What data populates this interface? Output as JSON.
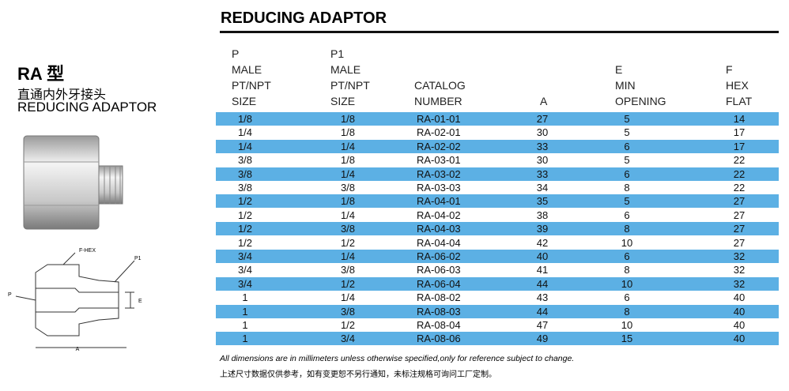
{
  "left": {
    "model": "RA 型",
    "name_cn": "直通内外牙接头",
    "name_en": "REDUCING ADAPTOR",
    "diagram": {
      "f_hex": "F-HEX",
      "p1": "P1",
      "p": "P",
      "e": "E",
      "a": "A"
    }
  },
  "header": {
    "title": "REDUCING ADAPTOR"
  },
  "table": {
    "header": [
      [
        "P",
        "MALE",
        "PT/NPT",
        "SIZE"
      ],
      [
        "P1",
        "MALE",
        "PT/NPT",
        "SIZE"
      ],
      [
        "CATALOG",
        "NUMBER"
      ],
      [
        "A"
      ],
      [
        "E",
        "MIN",
        "OPENING"
      ],
      [
        "F",
        "HEX",
        "FLAT"
      ]
    ],
    "rows": [
      [
        "1/8",
        "1/8",
        "RA-01-01",
        "27",
        "5",
        "14"
      ],
      [
        "1/4",
        "1/8",
        "RA-02-01",
        "30",
        "5",
        "17"
      ],
      [
        "1/4",
        "1/4",
        "RA-02-02",
        "33",
        "6",
        "17"
      ],
      [
        "3/8",
        "1/8",
        "RA-03-01",
        "30",
        "5",
        "22"
      ],
      [
        "3/8",
        "1/4",
        "RA-03-02",
        "33",
        "6",
        "22"
      ],
      [
        "3/8",
        "3/8",
        "RA-03-03",
        "34",
        "8",
        "22"
      ],
      [
        "1/2",
        "1/8",
        "RA-04-01",
        "35",
        "5",
        "27"
      ],
      [
        "1/2",
        "1/4",
        "RA-04-02",
        "38",
        "6",
        "27"
      ],
      [
        "1/2",
        "3/8",
        "RA-04-03",
        "39",
        "8",
        "27"
      ],
      [
        "1/2",
        "1/2",
        "RA-04-04",
        "42",
        "10",
        "27"
      ],
      [
        "3/4",
        "1/4",
        "RA-06-02",
        "40",
        "6",
        "32"
      ],
      [
        "3/4",
        "3/8",
        "RA-06-03",
        "41",
        "8",
        "32"
      ],
      [
        "3/4",
        "1/2",
        "RA-06-04",
        "44",
        "10",
        "32"
      ],
      [
        "1",
        "1/4",
        "RA-08-02",
        "43",
        "6",
        "40"
      ],
      [
        "1",
        "3/8",
        "RA-08-03",
        "44",
        "8",
        "40"
      ],
      [
        "1",
        "1/2",
        "RA-08-04",
        "47",
        "10",
        "40"
      ],
      [
        "1",
        "3/4",
        "RA-08-06",
        "49",
        "15",
        "40"
      ]
    ]
  },
  "footer": {
    "note_en": "All dimensions are in millimeters unless otherwise specified,only for reference subject to change.",
    "note_cn": "上述尺寸数据仅供参考，如有变更恕不另行通知，未标注规格可询问工厂定制。"
  }
}
